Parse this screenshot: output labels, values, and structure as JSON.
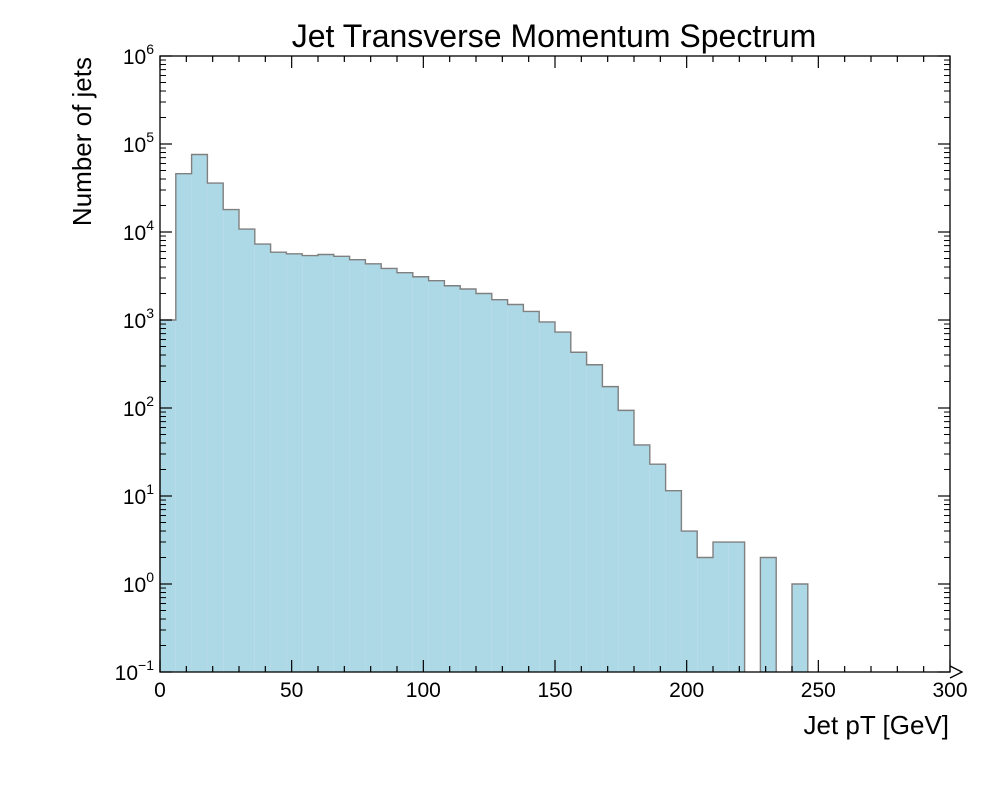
{
  "chart_data": {
    "type": "bar",
    "title": "Jet Transverse Momentum Spectrum",
    "xlabel": "Jet pT [GeV]",
    "ylabel": "Number of jets",
    "xlim": [
      0,
      300
    ],
    "ylim": [
      0.1,
      1000000
    ],
    "yscale": "log",
    "grid": false,
    "bin_width": 6,
    "x_ticks": [
      0,
      50,
      100,
      150,
      200,
      250,
      300
    ],
    "x_tick_labels": [
      "0",
      "50",
      "100",
      "150",
      "200",
      "250",
      "300"
    ],
    "y_ticks": [
      {
        "value": 0.1,
        "base": "10",
        "exp": "−1"
      },
      {
        "value": 1,
        "base": "10",
        "exp": "0"
      },
      {
        "value": 10,
        "base": "10",
        "exp": "1"
      },
      {
        "value": 100,
        "base": "10",
        "exp": "2"
      },
      {
        "value": 1000,
        "base": "10",
        "exp": "3"
      },
      {
        "value": 10000,
        "base": "10",
        "exp": "4"
      },
      {
        "value": 100000,
        "base": "10",
        "exp": "5"
      },
      {
        "value": 1000000,
        "base": "10",
        "exp": "6"
      }
    ],
    "bin_edges": [
      0,
      6,
      12,
      18,
      24,
      30,
      36,
      42,
      48,
      54,
      60,
      66,
      72,
      78,
      84,
      90,
      96,
      102,
      108,
      114,
      120,
      126,
      132,
      138,
      144,
      150,
      156,
      162,
      168,
      174,
      180,
      186,
      192,
      198,
      204,
      210,
      216,
      222,
      228,
      234,
      240,
      246,
      252,
      258,
      264,
      270,
      276,
      282,
      288,
      294,
      300
    ],
    "counts": [
      1000,
      46000,
      76000,
      36000,
      18000,
      10800,
      7300,
      5900,
      5650,
      5400,
      5550,
      5300,
      4850,
      4350,
      3850,
      3450,
      3100,
      2800,
      2450,
      2250,
      2000,
      1700,
      1500,
      1250,
      950,
      730,
      430,
      310,
      175,
      94,
      38,
      23,
      11.5,
      4,
      2,
      3,
      3,
      0,
      2,
      0,
      1,
      0,
      0,
      0,
      0,
      0,
      0,
      0,
      0,
      0
    ],
    "fill_color": "#add8e6",
    "edge_color": "#808080"
  }
}
